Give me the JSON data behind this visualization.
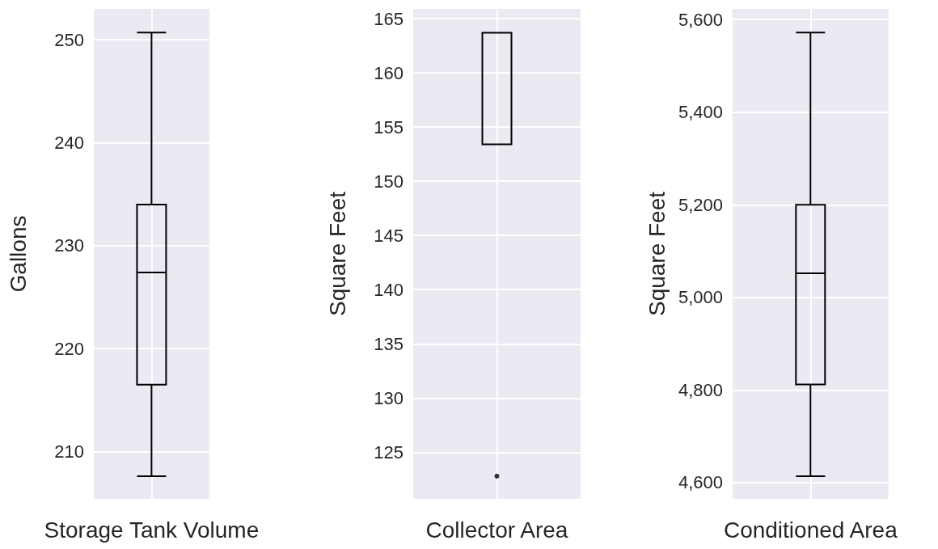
{
  "chart_data": [
    {
      "type": "box",
      "categories": [
        "Storage Tank Volume"
      ],
      "ylabel": "Gallons",
      "series": [
        {
          "color": "#000000",
          "boxes": [
            {
              "low": 207.6,
              "q1": 216.5,
              "median": 227.4,
              "q3": 234.0,
              "high": 250.7
            }
          ]
        }
      ],
      "ylim": [
        205.4,
        253.0
      ],
      "yticks": [
        210,
        220,
        230,
        240,
        250
      ],
      "grid": true
    },
    {
      "type": "box",
      "categories": [
        "Collector Area"
      ],
      "ylabel": "Square Feet",
      "series": [
        {
          "color": "#000000",
          "boxes": [
            {
              "low": 153.4,
              "q1": 153.4,
              "median": 163.7,
              "q3": 163.7,
              "high": 163.7,
              "outliers": [
                122.8
              ]
            }
          ]
        }
      ],
      "ylim": [
        120.7,
        165.9
      ],
      "yticks": [
        125,
        130,
        135,
        140,
        145,
        150,
        155,
        160,
        165
      ],
      "grid": true
    },
    {
      "type": "box",
      "categories": [
        "Conditioned Area"
      ],
      "ylabel": "Square Feet",
      "series": [
        {
          "color": "#000000",
          "boxes": [
            {
              "low": 4614,
              "q1": 4812,
              "median": 5052,
              "q3": 5200,
              "high": 5572
            }
          ]
        }
      ],
      "ylim": [
        4565,
        5623
      ],
      "yticks": [
        {
          "value": 4600,
          "label": "4,600"
        },
        {
          "value": 4800,
          "label": "4,800"
        },
        {
          "value": 5000,
          "label": "5,000"
        },
        {
          "value": 5200,
          "label": "5,200"
        },
        {
          "value": 5400,
          "label": "5,400"
        },
        {
          "value": 5600,
          "label": "5,600"
        }
      ],
      "grid": true
    }
  ]
}
